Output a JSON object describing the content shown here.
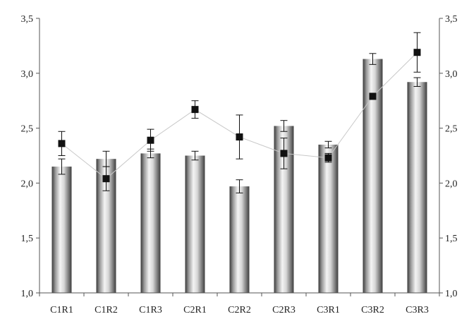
{
  "chart_data": {
    "type": "bar",
    "categories": [
      "C1R1",
      "C1R2",
      "C1R3",
      "C2R1",
      "C2R2",
      "C2R3",
      "C3R1",
      "C3R2",
      "C3R3"
    ],
    "series": [
      {
        "kind": "bar",
        "values": [
          2.15,
          2.22,
          2.27,
          2.25,
          1.97,
          2.52,
          2.35,
          3.13,
          2.92
        ],
        "errors": [
          0.07,
          0.07,
          0.04,
          0.04,
          0.06,
          0.05,
          0.03,
          0.05,
          0.04
        ]
      },
      {
        "kind": "line-markers",
        "values": [
          2.36,
          2.04,
          2.39,
          2.67,
          2.42,
          2.27,
          2.23,
          2.79,
          3.19
        ],
        "errors": [
          0.11,
          0.11,
          0.1,
          0.08,
          0.2,
          0.14,
          0.04,
          0.0,
          0.18
        ]
      }
    ],
    "ylim": [
      1.0,
      3.5
    ],
    "yticks": [
      {
        "value": 1.0,
        "label": "1,0"
      },
      {
        "value": 1.5,
        "label": "1,5"
      },
      {
        "value": 2.0,
        "label": "2,0"
      },
      {
        "value": 2.5,
        "label": "2,5"
      },
      {
        "value": 3.0,
        "label": "3,0"
      },
      {
        "value": 3.5,
        "label": "3,5"
      }
    ],
    "secondary_axis": "right, mirrors left",
    "grid": false,
    "colors": {
      "bar_dark": "#3a3a3a",
      "bar_light": "#f4f4f4",
      "marker": "#111111",
      "trend_line": "#c8c8c8"
    }
  }
}
